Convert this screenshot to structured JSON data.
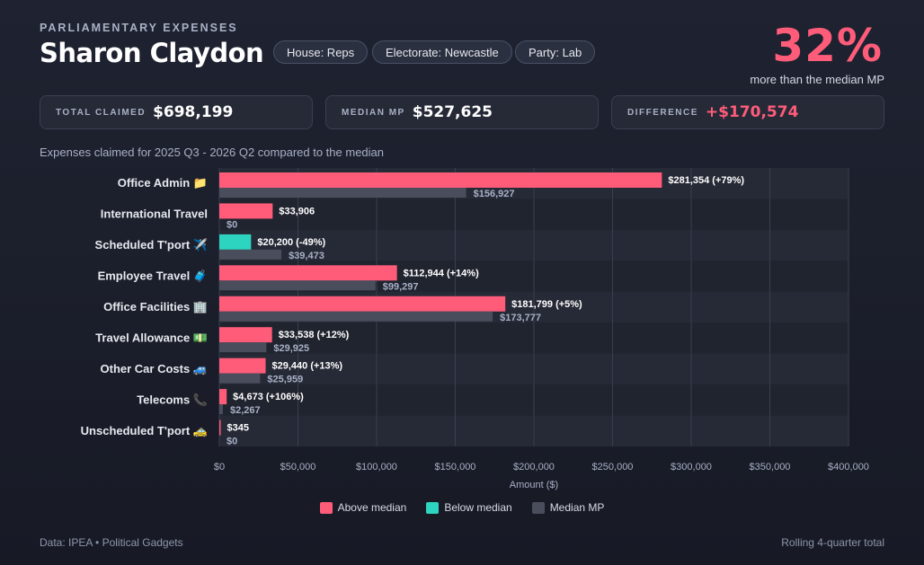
{
  "header": {
    "eyebrow": "PARLIAMENTARY EXPENSES",
    "name": "Sharon Claydon",
    "chips": [
      "House: Reps",
      "Electorate: Newcastle",
      "Party: Lab"
    ],
    "headline_pct": "32%",
    "headline_sub": "more than the median MP"
  },
  "cards": [
    {
      "label": "TOTAL CLAIMED",
      "value": "$698,199"
    },
    {
      "label": "MEDIAN MP",
      "value": "$527,625"
    },
    {
      "label": "DIFFERENCE",
      "value": "+$170,574"
    }
  ],
  "subtitle": "Expenses claimed for 2025 Q3 - 2026 Q2 compared to the median",
  "colors": {
    "above": "#ff5c7a",
    "below": "#2dd4bf",
    "median": "#4a4e5c",
    "accent": "#ff5c7a"
  },
  "chart_data": {
    "type": "bar",
    "orientation": "horizontal",
    "categories": [
      "Office Admin 📁",
      "International Travel",
      "Scheduled T'port ✈️",
      "Employee Travel 🧳",
      "Office Facilities 🏢",
      "Travel Allowance 💵",
      "Other Car Costs 🚙",
      "Telecoms 📞",
      "Unscheduled T'port 🚕"
    ],
    "series": [
      {
        "name": "Above median / Below median",
        "values": [
          281354,
          33906,
          20200,
          112944,
          181799,
          33538,
          29440,
          4673,
          345
        ]
      },
      {
        "name": "Median MP",
        "values": [
          156927,
          0,
          39473,
          99297,
          173777,
          29925,
          25959,
          2267,
          0
        ]
      }
    ],
    "value_labels": [
      "$281,354 (+79%)",
      "$33,906",
      "$20,200 (-49%)",
      "$112,944 (+14%)",
      "$181,799 (+5%)",
      "$33,538 (+12%)",
      "$29,440 (+13%)",
      "$4,673 (+106%)",
      "$345"
    ],
    "median_labels": [
      "$156,927",
      "$0",
      "$39,473",
      "$99,297",
      "$173,777",
      "$29,925",
      "$25,959",
      "$2,267",
      "$0"
    ],
    "status": [
      "above",
      "above",
      "below",
      "above",
      "above",
      "above",
      "above",
      "above",
      "above"
    ],
    "x_ticks": [
      "$0",
      "$50,000",
      "$100,000",
      "$150,000",
      "$200,000",
      "$250,000",
      "$300,000",
      "$350,000",
      "$400,000"
    ],
    "xlim": [
      0,
      400000
    ],
    "xlabel": "Amount ($)",
    "legend": [
      "Above median",
      "Below median",
      "Median MP"
    ],
    "grid": true,
    "legend_position": "bottom"
  },
  "footer": {
    "left": "Data: IPEA • Political Gadgets",
    "right": "Rolling 4-quarter total"
  }
}
